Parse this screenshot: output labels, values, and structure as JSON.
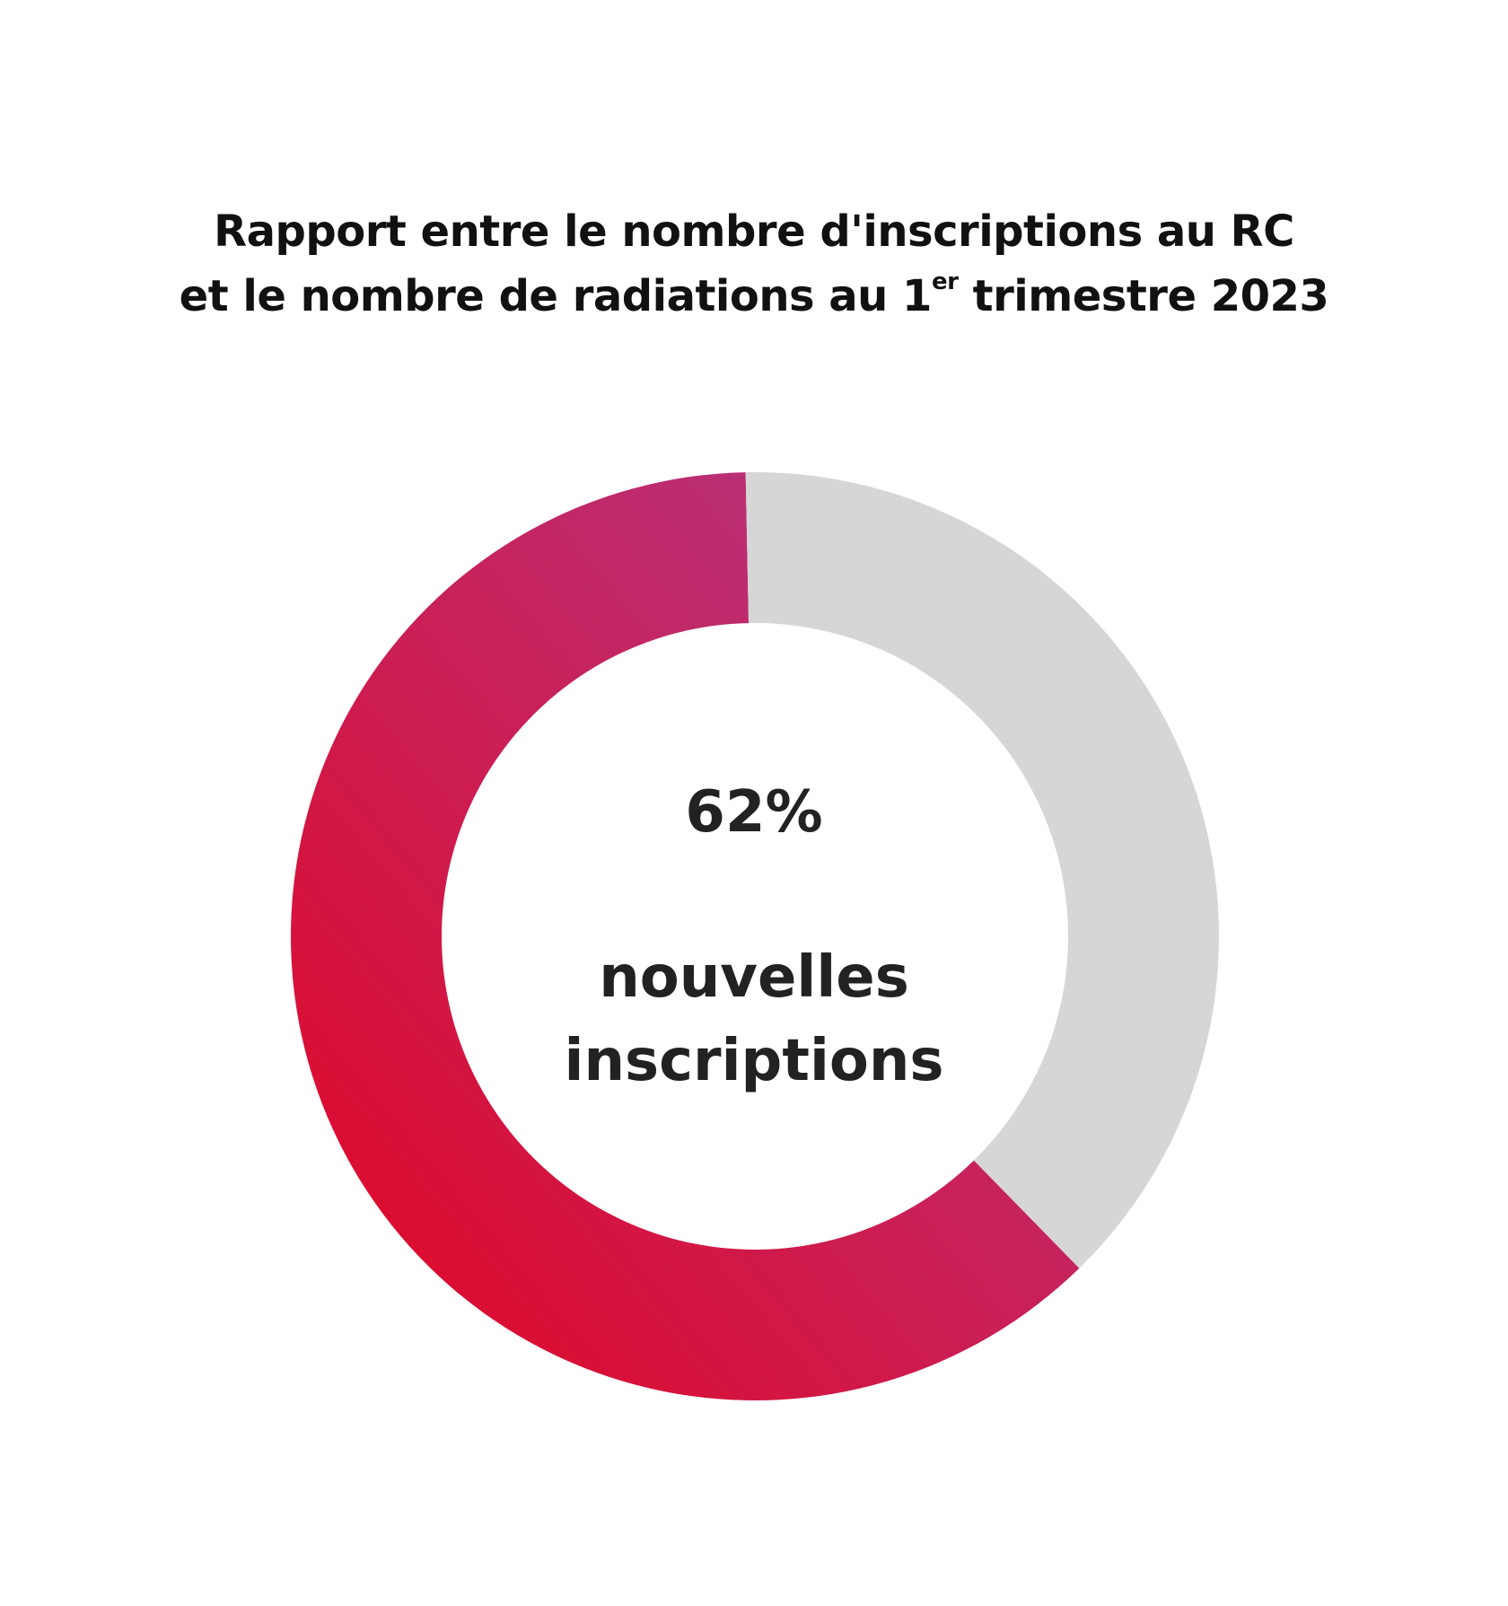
{
  "chart_data": {
    "type": "pie",
    "variant": "donut",
    "title_line1": "Rapport entre le nombre d'inscriptions au RC",
    "title_line2_pre": "et le nombre de radiations au 1",
    "title_line2_sup": "er",
    "title_line2_post": " trimestre 2023",
    "slices": [
      {
        "label": "nouvelles inscriptions",
        "value": 62,
        "color_start": "#E30521",
        "color_end": "#B03A8C"
      },
      {
        "label": "",
        "value": 38,
        "color": "#D6D6D6"
      }
    ],
    "center_value": "62%",
    "center_label_line1": "nouvelles",
    "center_label_line2": "inscriptions"
  }
}
